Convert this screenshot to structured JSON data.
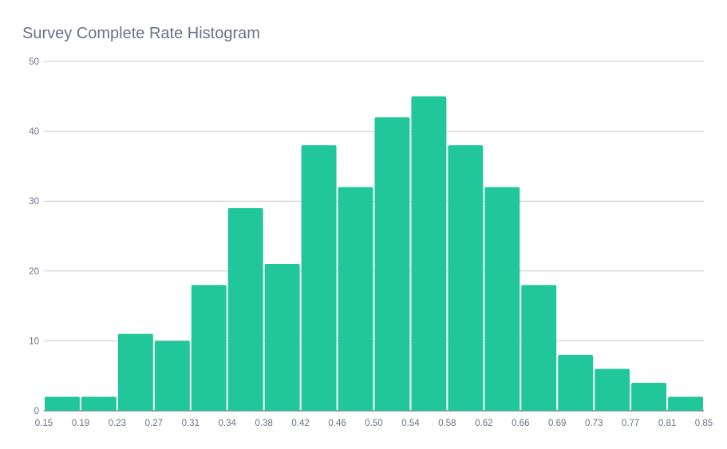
{
  "chart_data": {
    "type": "bar",
    "title": "Survey Complete Rate Histogram",
    "xlabel": "",
    "ylabel": "",
    "x_ticks": [
      "0.15",
      "0.19",
      "0.23",
      "0.27",
      "0.31",
      "0.34",
      "0.38",
      "0.42",
      "0.46",
      "0.50",
      "0.54",
      "0.58",
      "0.62",
      "0.66",
      "0.69",
      "0.73",
      "0.77",
      "0.81",
      "0.85"
    ],
    "values": [
      2,
      2,
      11,
      10,
      18,
      29,
      21,
      38,
      32,
      42,
      45,
      38,
      32,
      18,
      8,
      6,
      4,
      2
    ],
    "y_ticks": [
      0,
      10,
      20,
      30,
      40,
      50
    ],
    "ylim": [
      0,
      50
    ],
    "grid": true,
    "bar_color": "#21c79a",
    "grid_color": "#cccccc"
  }
}
